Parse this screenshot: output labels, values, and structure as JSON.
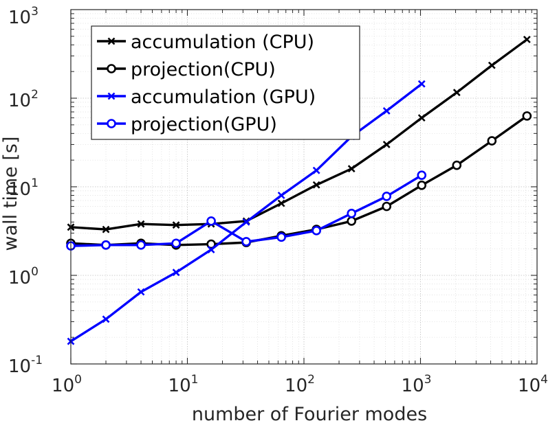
{
  "chart_data": {
    "type": "line",
    "xscale": "log",
    "yscale": "log",
    "xlabel": "number of Fourier modes",
    "ylabel": "wall time [s]",
    "xlim": [
      1,
      10000
    ],
    "ylim": [
      0.1,
      1000
    ],
    "grid": true,
    "legend_position": "top-left",
    "x_ticks": [
      {
        "base": "10",
        "exp": "0"
      },
      {
        "base": "10",
        "exp": "1"
      },
      {
        "base": "10",
        "exp": "2"
      },
      {
        "base": "10",
        "exp": "3"
      },
      {
        "base": "10",
        "exp": "4"
      }
    ],
    "y_ticks": [
      {
        "base": "10",
        "exp": "-1"
      },
      {
        "base": "10",
        "exp": "0"
      },
      {
        "base": "10",
        "exp": "1"
      },
      {
        "base": "10",
        "exp": "2"
      },
      {
        "base": "10",
        "exp": "3"
      }
    ],
    "series": [
      {
        "name": "accumulation (CPU)",
        "color": "#000000",
        "marker": "x",
        "x": [
          1,
          2,
          4,
          8,
          16,
          32,
          64,
          128,
          256,
          512,
          1024,
          2048,
          4096,
          8192
        ],
        "y": [
          3.5,
          3.3,
          3.8,
          3.7,
          3.8,
          4.1,
          6.5,
          10.5,
          16,
          30,
          60,
          116,
          235,
          460
        ]
      },
      {
        "name": "projection(CPU)",
        "color": "#000000",
        "marker": "o",
        "x": [
          1,
          2,
          4,
          8,
          16,
          32,
          64,
          128,
          256,
          512,
          1024,
          2048,
          4096,
          8192
        ],
        "y": [
          2.3,
          2.2,
          2.3,
          2.2,
          2.25,
          2.35,
          2.8,
          3.3,
          4.1,
          6.0,
          10.4,
          17.5,
          33,
          63
        ]
      },
      {
        "name": "accumulation (GPU)",
        "color": "#0000ff",
        "marker": "x",
        "x": [
          1,
          2,
          4,
          8,
          16,
          32,
          64,
          128,
          256,
          512,
          1024
        ],
        "y": [
          0.18,
          0.32,
          0.65,
          1.08,
          1.95,
          4.0,
          8.0,
          15.3,
          37,
          72,
          145
        ]
      },
      {
        "name": "projection(GPU)",
        "color": "#0000ff",
        "marker": "o",
        "x": [
          1,
          2,
          4,
          8,
          16,
          32,
          64,
          128,
          256,
          512,
          1024
        ],
        "y": [
          2.15,
          2.2,
          2.2,
          2.3,
          4.1,
          2.4,
          2.7,
          3.2,
          5.0,
          7.8,
          13.5
        ]
      }
    ]
  }
}
